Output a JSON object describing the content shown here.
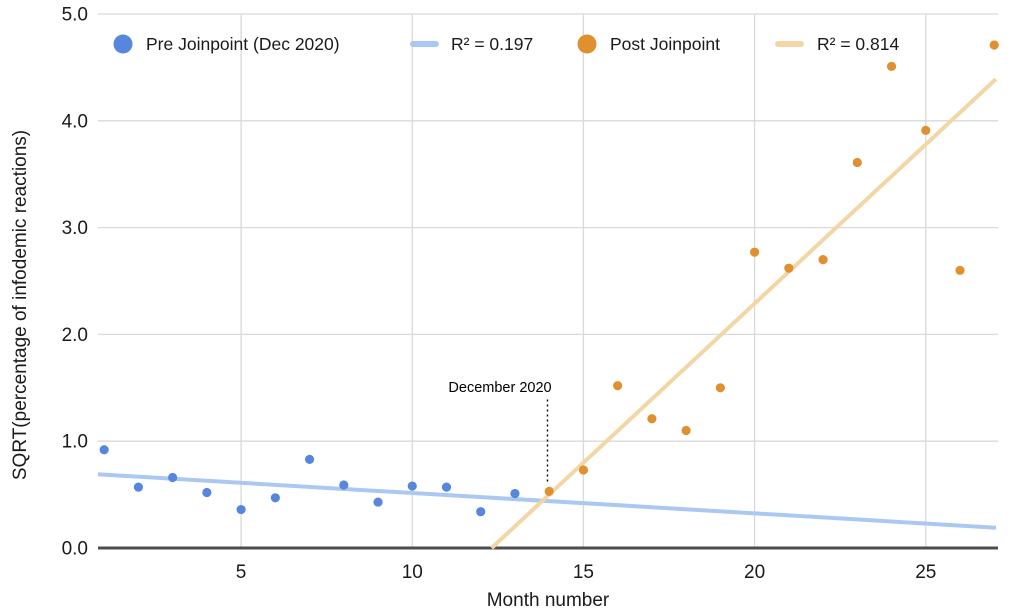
{
  "chart_data": {
    "type": "scatter",
    "title": "",
    "xlabel": "Month number",
    "ylabel": "SQRT(percentage of infodemic reactions)",
    "xlim": [
      0.82,
      27.11
    ],
    "ylim": [
      0.0,
      5.0
    ],
    "grid": true,
    "legend_position": "top",
    "x_ticks": {
      "values": [
        5,
        10,
        15,
        20,
        25
      ],
      "labels": [
        "5",
        "10",
        "15",
        "20",
        "25"
      ]
    },
    "y_ticks": {
      "values": [
        0,
        1,
        2,
        3,
        4,
        5
      ],
      "labels": [
        "0.0",
        "1.0",
        "2.0",
        "3.0",
        "4.0",
        "5.0"
      ]
    },
    "series": [
      {
        "name": "Pre Joinpoint (Dec 2020)",
        "color": "#5787dd",
        "marker": "circle",
        "points": [
          [
            1,
            0.92
          ],
          [
            2,
            0.57
          ],
          [
            3,
            0.66
          ],
          [
            4,
            0.52
          ],
          [
            5,
            0.36
          ],
          [
            6,
            0.47
          ],
          [
            7,
            0.83
          ],
          [
            8,
            0.59
          ],
          [
            9,
            0.43
          ],
          [
            10,
            0.58
          ],
          [
            11,
            0.57
          ],
          [
            12,
            0.34
          ],
          [
            13,
            0.51
          ]
        ]
      },
      {
        "name": "Post Joinpoint",
        "color": "#e0902f",
        "marker": "circle",
        "points": [
          [
            14,
            0.53
          ],
          [
            15,
            0.73
          ],
          [
            16,
            1.52
          ],
          [
            17,
            1.21
          ],
          [
            18,
            1.1
          ],
          [
            19,
            1.5
          ],
          [
            20,
            2.77
          ],
          [
            21,
            2.62
          ],
          [
            22,
            2.7
          ],
          [
            23,
            3.61
          ],
          [
            24,
            4.51
          ],
          [
            25,
            3.91
          ],
          [
            26,
            2.6
          ],
          [
            27,
            4.71
          ]
        ]
      }
    ],
    "trendlines": [
      {
        "name": "R² = 0.197",
        "series": "Pre Joinpoint (Dec 2020)",
        "color": "#abc8f3",
        "x1": 0.82,
        "y1": 0.69,
        "x2": 27.05,
        "y2": 0.19
      },
      {
        "name": "R² = 0.814",
        "series": "Post Joinpoint",
        "color": "#f4d6a5",
        "x1": 12.32,
        "y1": 0.0,
        "x2": 27.05,
        "y2": 4.39
      }
    ],
    "annotation": {
      "text": "December 2020",
      "label_month": 12.55,
      "label_value": 1.47,
      "line_month": 13.95,
      "line_value_top": 1.39,
      "line_value_bottom": 0.6
    },
    "colors": {
      "gridline": "#d9d9d9",
      "axis_line": "#4d4d4d",
      "text": "#1a1a1a",
      "background": "#ffffff"
    }
  }
}
